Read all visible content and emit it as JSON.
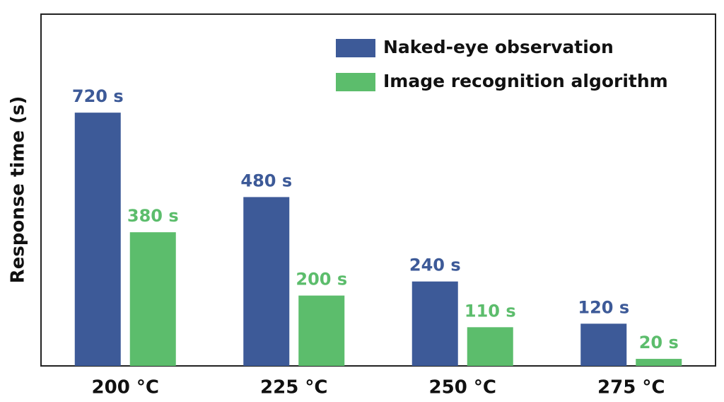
{
  "chart_data": {
    "type": "bar",
    "y_label": "Response time (s)",
    "categories": [
      "200 °C",
      "225 °C",
      "250 °C",
      "275 °C"
    ],
    "series": [
      {
        "name": "Naked-eye observation",
        "color": "#3d5a98",
        "values": [
          720,
          480,
          240,
          120
        ],
        "value_labels": [
          "720 s",
          "480 s",
          "240 s",
          "120 s"
        ]
      },
      {
        "name": "Image recognition algorithm",
        "color": "#5cbd6c",
        "values": [
          380,
          200,
          110,
          20
        ],
        "value_labels": [
          "380 s",
          "200 s",
          "110 s",
          "20 s"
        ]
      }
    ],
    "ylim": [
      0,
      1000
    ],
    "legend": "upper right"
  }
}
